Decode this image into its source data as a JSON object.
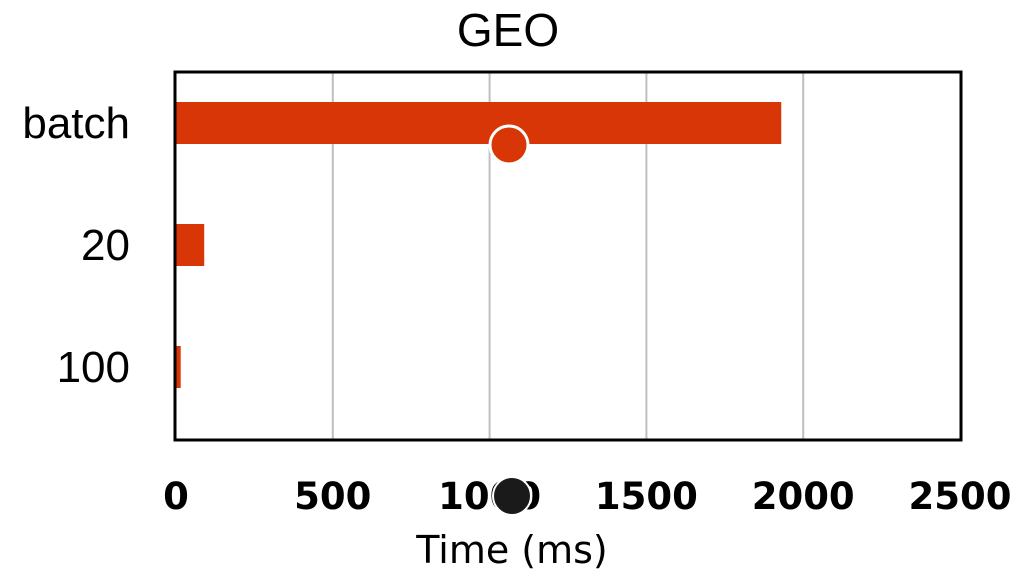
{
  "chart_data": {
    "type": "bar",
    "orientation": "horizontal",
    "title": "GEO",
    "xlabel": "Time (ms)",
    "ylabel": "",
    "categories": [
      "batch",
      "20",
      "100"
    ],
    "values": [
      1930,
      90,
      15
    ],
    "xlim": [
      0,
      2500
    ],
    "xticks": [
      0,
      500,
      1000,
      1500,
      2000,
      2500
    ],
    "xtick_labels": [
      "0",
      "500",
      "1000",
      "1500",
      "2000",
      "2500"
    ],
    "grid": true,
    "legend": "none",
    "colors": {
      "bar": "#d93608",
      "grid": "#bfbfbf",
      "frame": "#000000",
      "cursor_marker": "#d93608",
      "cursor_outline": "#ffffff",
      "click_marker": "#1a1a1a"
    }
  }
}
